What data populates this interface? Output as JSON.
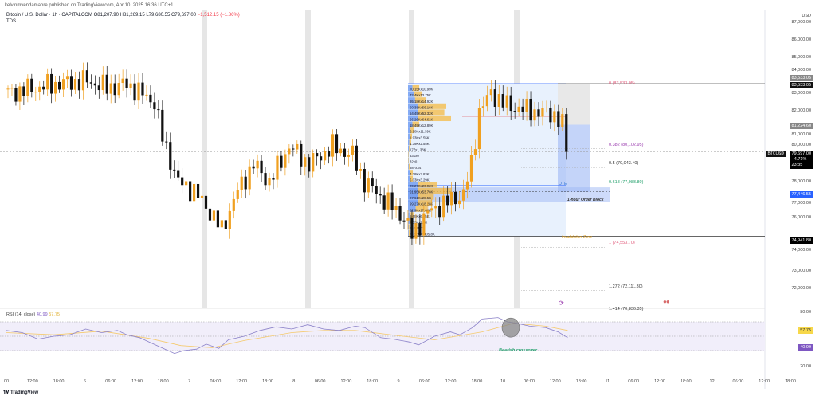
{
  "publisher": "kelvinmvendamaore published on TradingView.com, Apr 10, 2025 16:36 UTC+1",
  "legend": {
    "symbol": "Bitcoin / U.S. Dollar · 1h · CAPITALCOM",
    "open": "O81,207.90",
    "high": "H81,269.15",
    "low": "L79,680.55",
    "close": "C79,697.00",
    "change": "−1,512.15 (−1.86%)",
    "indicator": "TDS"
  },
  "currency": "USD",
  "price_labels": [
    "87,000.00",
    "86,000.00",
    "85,000.00",
    "84,000.00",
    "83,000.00",
    "82,000.00",
    "81,000.00",
    "80,000.00",
    "78,000.00",
    "77,000.00",
    "76,000.00",
    "74,000.00",
    "73,000.00",
    "72,000.00"
  ],
  "price_values": [
    87000,
    86000,
    85000,
    84000,
    83000,
    82000,
    81000,
    80000,
    78000,
    77000,
    76000,
    74000,
    73000,
    72000
  ],
  "tags": {
    "high_a": "83,533.05",
    "high_b": "83,533.05",
    "mid": "81,224.60",
    "symbol": "BTCUSD",
    "last": "79,697.00",
    "last_pct": "−4.71%",
    "countdown": "23:35",
    "ob": "77,446.55",
    "low": "74,941.80",
    "rsi_ma": "57.75",
    "rsi": "40.99"
  },
  "fib": [
    {
      "label": "0 (83,533.05)",
      "price": 83533,
      "color": "#e05a7a"
    },
    {
      "label": "0.382 (80,102.95)",
      "price": 80103,
      "color": "#9c3fb0"
    },
    {
      "label": "0.5 (79,043.40)",
      "price": 79043,
      "color": "#333333"
    },
    {
      "label": "0.618 (77,983.80)",
      "price": 77984,
      "color": "#22a06b"
    },
    {
      "label": "1 (74,553.70)",
      "price": 74554,
      "color": "#e05a7a"
    },
    {
      "label": "1.272 (72,111.30)",
      "price": 72111,
      "color": "#333333"
    },
    {
      "label": "1.414 (70,836.35)",
      "price": 70836,
      "color": "#333333"
    }
  ],
  "annotations": {
    "ote": "OTE",
    "order_block": "1-hour Order Block",
    "invalidation": "Invalidation Zone",
    "bearish": "Bearish crossover"
  },
  "volume_profile": [
    "70.15Kx10.99K",
    "72.4Kx13.75K",
    "95.18Kx14.92K",
    "50.38Kx56.16K",
    "54.49Kx52.32K",
    "66.26Kx64.61K",
    "18.49Kx12.89K",
    "5.90Kx11.39K",
    "1.93Kx3.55K",
    "1.39Kx2.55K",
    "177x1.38K",
    "331x0",
    "32x0",
    "887x347",
    "4.38Kx3.83K",
    "5.03Kx3.29K",
    "29.27Kx26.92K",
    "51.95Kx53.76K",
    "27.61Kx28.5K",
    "99.27Kx18.28K",
    "22.9Kx17.68K",
    "5.69Kx6.35K",
    "4.53Kx2.5K",
    "999x817",
    "415.89Kx405.8K"
  ],
  "rsi": {
    "title": "RSI (14, close)",
    "value": "40.99",
    "ma": "57.75",
    "labels": [
      "80.00",
      "20.00"
    ],
    "path": [
      [
        0,
        58
      ],
      [
        5,
        55
      ],
      [
        10,
        46
      ],
      [
        15,
        50
      ],
      [
        20,
        52
      ],
      [
        25,
        60
      ],
      [
        30,
        55
      ],
      [
        35,
        58
      ],
      [
        38,
        52
      ],
      [
        42,
        48
      ],
      [
        45,
        42
      ],
      [
        50,
        32
      ],
      [
        53,
        26
      ],
      [
        56,
        30
      ],
      [
        60,
        32
      ],
      [
        63,
        39
      ],
      [
        67,
        33
      ],
      [
        70,
        45
      ],
      [
        75,
        50
      ],
      [
        80,
        58
      ],
      [
        85,
        63
      ],
      [
        90,
        60
      ],
      [
        95,
        66
      ],
      [
        100,
        60
      ],
      [
        105,
        58
      ],
      [
        110,
        64
      ],
      [
        113,
        62
      ],
      [
        118,
        48
      ],
      [
        122,
        46
      ],
      [
        127,
        42
      ],
      [
        130,
        38
      ],
      [
        135,
        50
      ],
      [
        140,
        56
      ],
      [
        143,
        52
      ],
      [
        147,
        62
      ],
      [
        150,
        74
      ],
      [
        155,
        76
      ],
      [
        158,
        70
      ],
      [
        161,
        68
      ],
      [
        165,
        64
      ],
      [
        170,
        62
      ],
      [
        174,
        56
      ],
      [
        177,
        48
      ]
    ],
    "ma_path": [
      [
        0,
        55
      ],
      [
        15,
        52
      ],
      [
        30,
        57
      ],
      [
        45,
        47
      ],
      [
        55,
        37
      ],
      [
        65,
        34
      ],
      [
        75,
        44
      ],
      [
        90,
        55
      ],
      [
        100,
        58
      ],
      [
        110,
        58
      ],
      [
        125,
        50
      ],
      [
        135,
        45
      ],
      [
        150,
        56
      ],
      [
        160,
        68
      ],
      [
        170,
        64
      ],
      [
        177,
        58
      ]
    ]
  },
  "time_labels": [
    "00",
    "12:00",
    "18:00",
    "6",
    "06:00",
    "12:00",
    "18:00",
    "7",
    "06:00",
    "12:00",
    "18:00",
    "8",
    "06:00",
    "12:00",
    "18:00",
    "9",
    "06:00",
    "12:00",
    "18:00",
    "10",
    "06:00",
    "12:00",
    "18:00",
    "11",
    "06:00",
    "12:00",
    "18:00",
    "12",
    "06:00",
    "12:00",
    "18:00"
  ],
  "price_path": [
    [
      0,
      83000
    ],
    [
      12,
      83500
    ],
    [
      20,
      83700
    ],
    [
      25,
      83300
    ],
    [
      30,
      83500
    ],
    [
      37,
      82500
    ],
    [
      39,
      80500
    ],
    [
      43,
      78000
    ],
    [
      47,
      77500
    ],
    [
      52,
      76000
    ],
    [
      54,
      75300
    ],
    [
      58,
      77500
    ],
    [
      62,
      79000
    ],
    [
      66,
      78000
    ],
    [
      71,
      80000
    ],
    [
      76,
      79000
    ],
    [
      82,
      80000
    ],
    [
      87,
      79500
    ],
    [
      90,
      78000
    ],
    [
      95,
      77000
    ],
    [
      100,
      76000
    ],
    [
      102,
      75000
    ],
    [
      106,
      76300
    ],
    [
      112,
      77000
    ],
    [
      115,
      77300
    ],
    [
      117,
      79000
    ],
    [
      119,
      82000
    ],
    [
      122,
      83000
    ],
    [
      126,
      82300
    ],
    [
      132,
      82000
    ],
    [
      138,
      81800
    ],
    [
      140,
      81200
    ],
    [
      141,
      79700
    ]
  ],
  "brand": "TradingView"
}
